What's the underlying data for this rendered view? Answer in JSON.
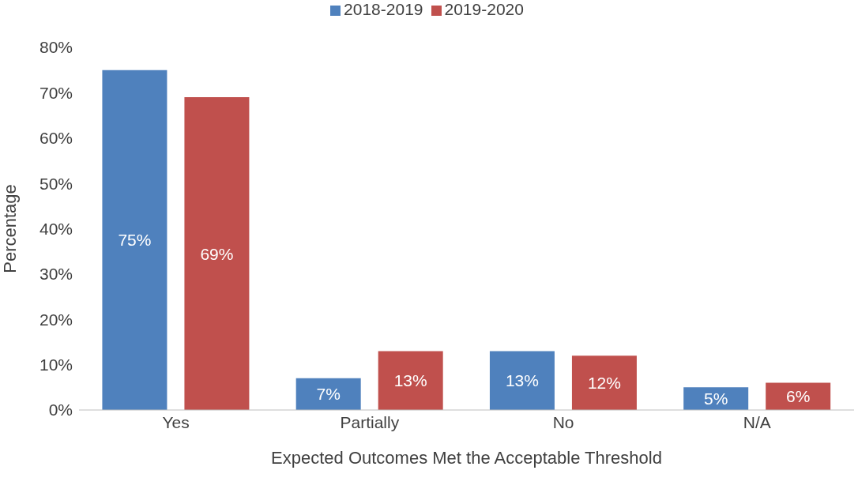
{
  "chart_data": {
    "type": "bar",
    "xlabel": "Expected Outcomes Met the Acceptable Threshold",
    "ylabel": "Percentage",
    "categories": [
      "Yes",
      "Partially",
      "No",
      "N/A"
    ],
    "series": [
      {
        "name": "2018-2019",
        "color": "#4f81bd",
        "values": [
          75,
          7,
          13,
          5
        ],
        "value_labels": [
          "75%",
          "7%",
          "13%",
          "5%"
        ]
      },
      {
        "name": "2019-2020",
        "color": "#c0504d",
        "values": [
          69,
          13,
          12,
          6
        ],
        "value_labels": [
          "69%",
          "13%",
          "12%",
          "6%"
        ]
      }
    ],
    "ylim": [
      0,
      80
    ],
    "yticks": [
      {
        "value": 0,
        "label": "0%"
      },
      {
        "value": 10,
        "label": "10%"
      },
      {
        "value": 20,
        "label": "20%"
      },
      {
        "value": 30,
        "label": "30%"
      },
      {
        "value": 40,
        "label": "40%"
      },
      {
        "value": 50,
        "label": "50%"
      },
      {
        "value": 60,
        "label": "60%"
      },
      {
        "value": 70,
        "label": "70%"
      },
      {
        "value": 80,
        "label": "80%"
      }
    ],
    "grid": false,
    "legend": "top"
  }
}
